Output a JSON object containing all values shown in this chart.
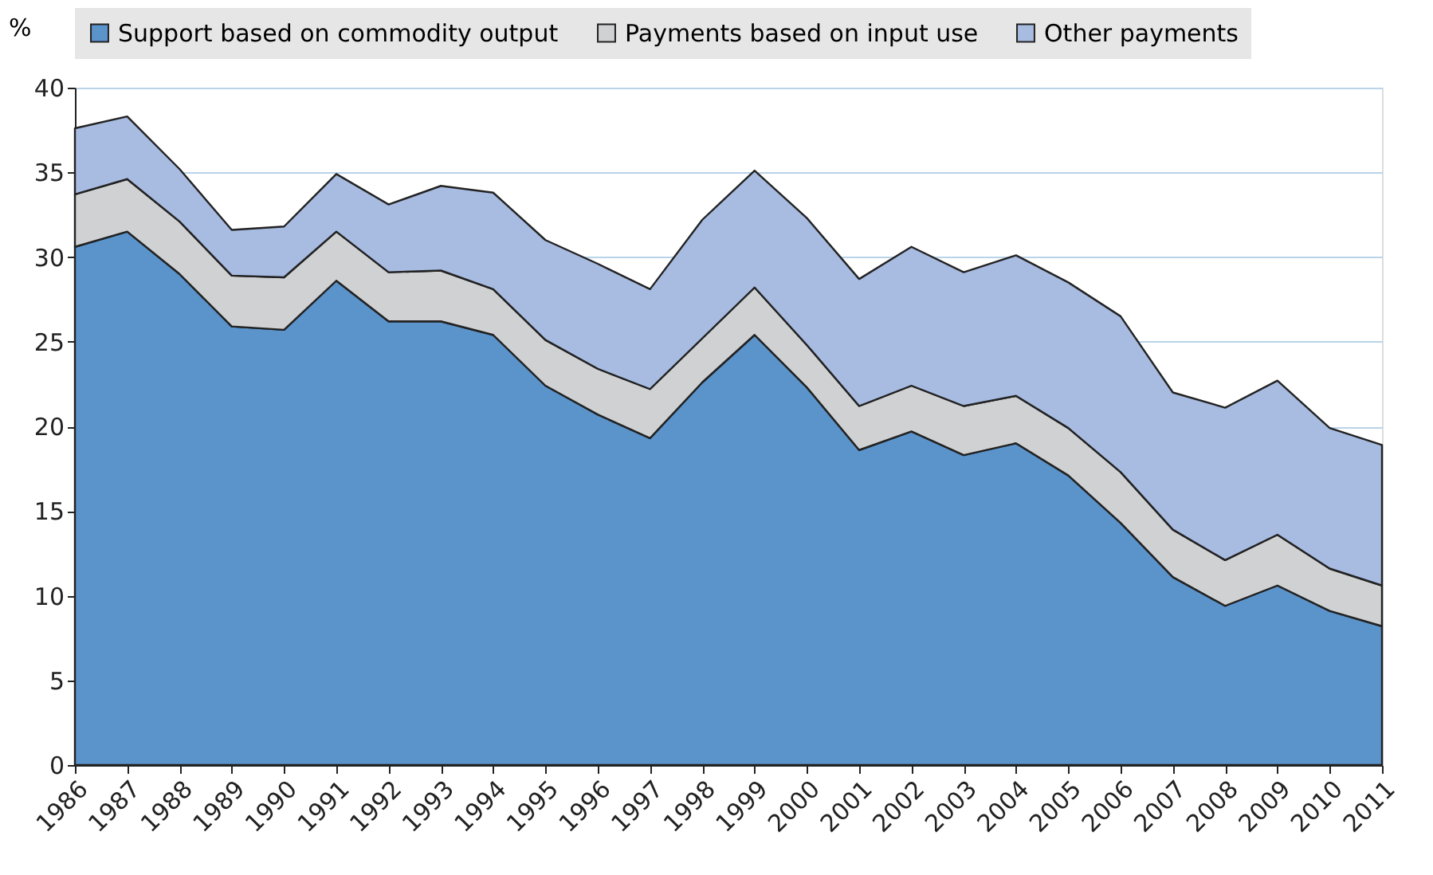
{
  "chart_data": {
    "type": "area",
    "stacked": true,
    "ylabel": "%",
    "categories": [
      "1986",
      "1987",
      "1988",
      "1989",
      "1990",
      "1991",
      "1992",
      "1993",
      "1994",
      "1995",
      "1996",
      "1997",
      "1998",
      "1999",
      "2000",
      "2001",
      "2002",
      "2003",
      "2004",
      "2005",
      "2006",
      "2007",
      "2008",
      "2009",
      "2010",
      "2011"
    ],
    "series": [
      {
        "name": "Support based on commodity output",
        "color": "#5b93cb",
        "values": [
          30.6,
          31.5,
          29.0,
          25.9,
          25.7,
          28.6,
          26.2,
          26.2,
          25.4,
          22.4,
          20.7,
          19.3,
          22.6,
          25.4,
          22.3,
          18.6,
          19.7,
          18.3,
          19.0,
          17.1,
          14.3,
          11.1,
          9.4,
          10.6,
          9.1,
          8.2
        ]
      },
      {
        "name": "Payments based on input use",
        "color": "#d0d1d3",
        "values": [
          3.1,
          3.1,
          3.1,
          3.0,
          3.1,
          2.9,
          2.9,
          3.0,
          2.7,
          2.7,
          2.7,
          2.9,
          2.6,
          2.8,
          2.5,
          2.6,
          2.7,
          2.9,
          2.8,
          2.8,
          3.0,
          2.8,
          2.7,
          3.0,
          2.5,
          2.4
        ]
      },
      {
        "name": "Other payments",
        "color": "#a8bce2",
        "values": [
          3.9,
          3.7,
          3.1,
          2.7,
          3.0,
          3.4,
          4.0,
          5.0,
          5.7,
          5.9,
          6.2,
          5.9,
          7.0,
          6.9,
          7.5,
          7.5,
          8.2,
          7.9,
          8.3,
          8.6,
          9.2,
          8.1,
          9.0,
          9.1,
          8.3,
          8.3
        ]
      }
    ],
    "ylim": [
      0,
      40
    ],
    "yticks": [
      0,
      5,
      10,
      15,
      20,
      25,
      30,
      35,
      40
    ],
    "grid": "y",
    "legend": "top"
  }
}
